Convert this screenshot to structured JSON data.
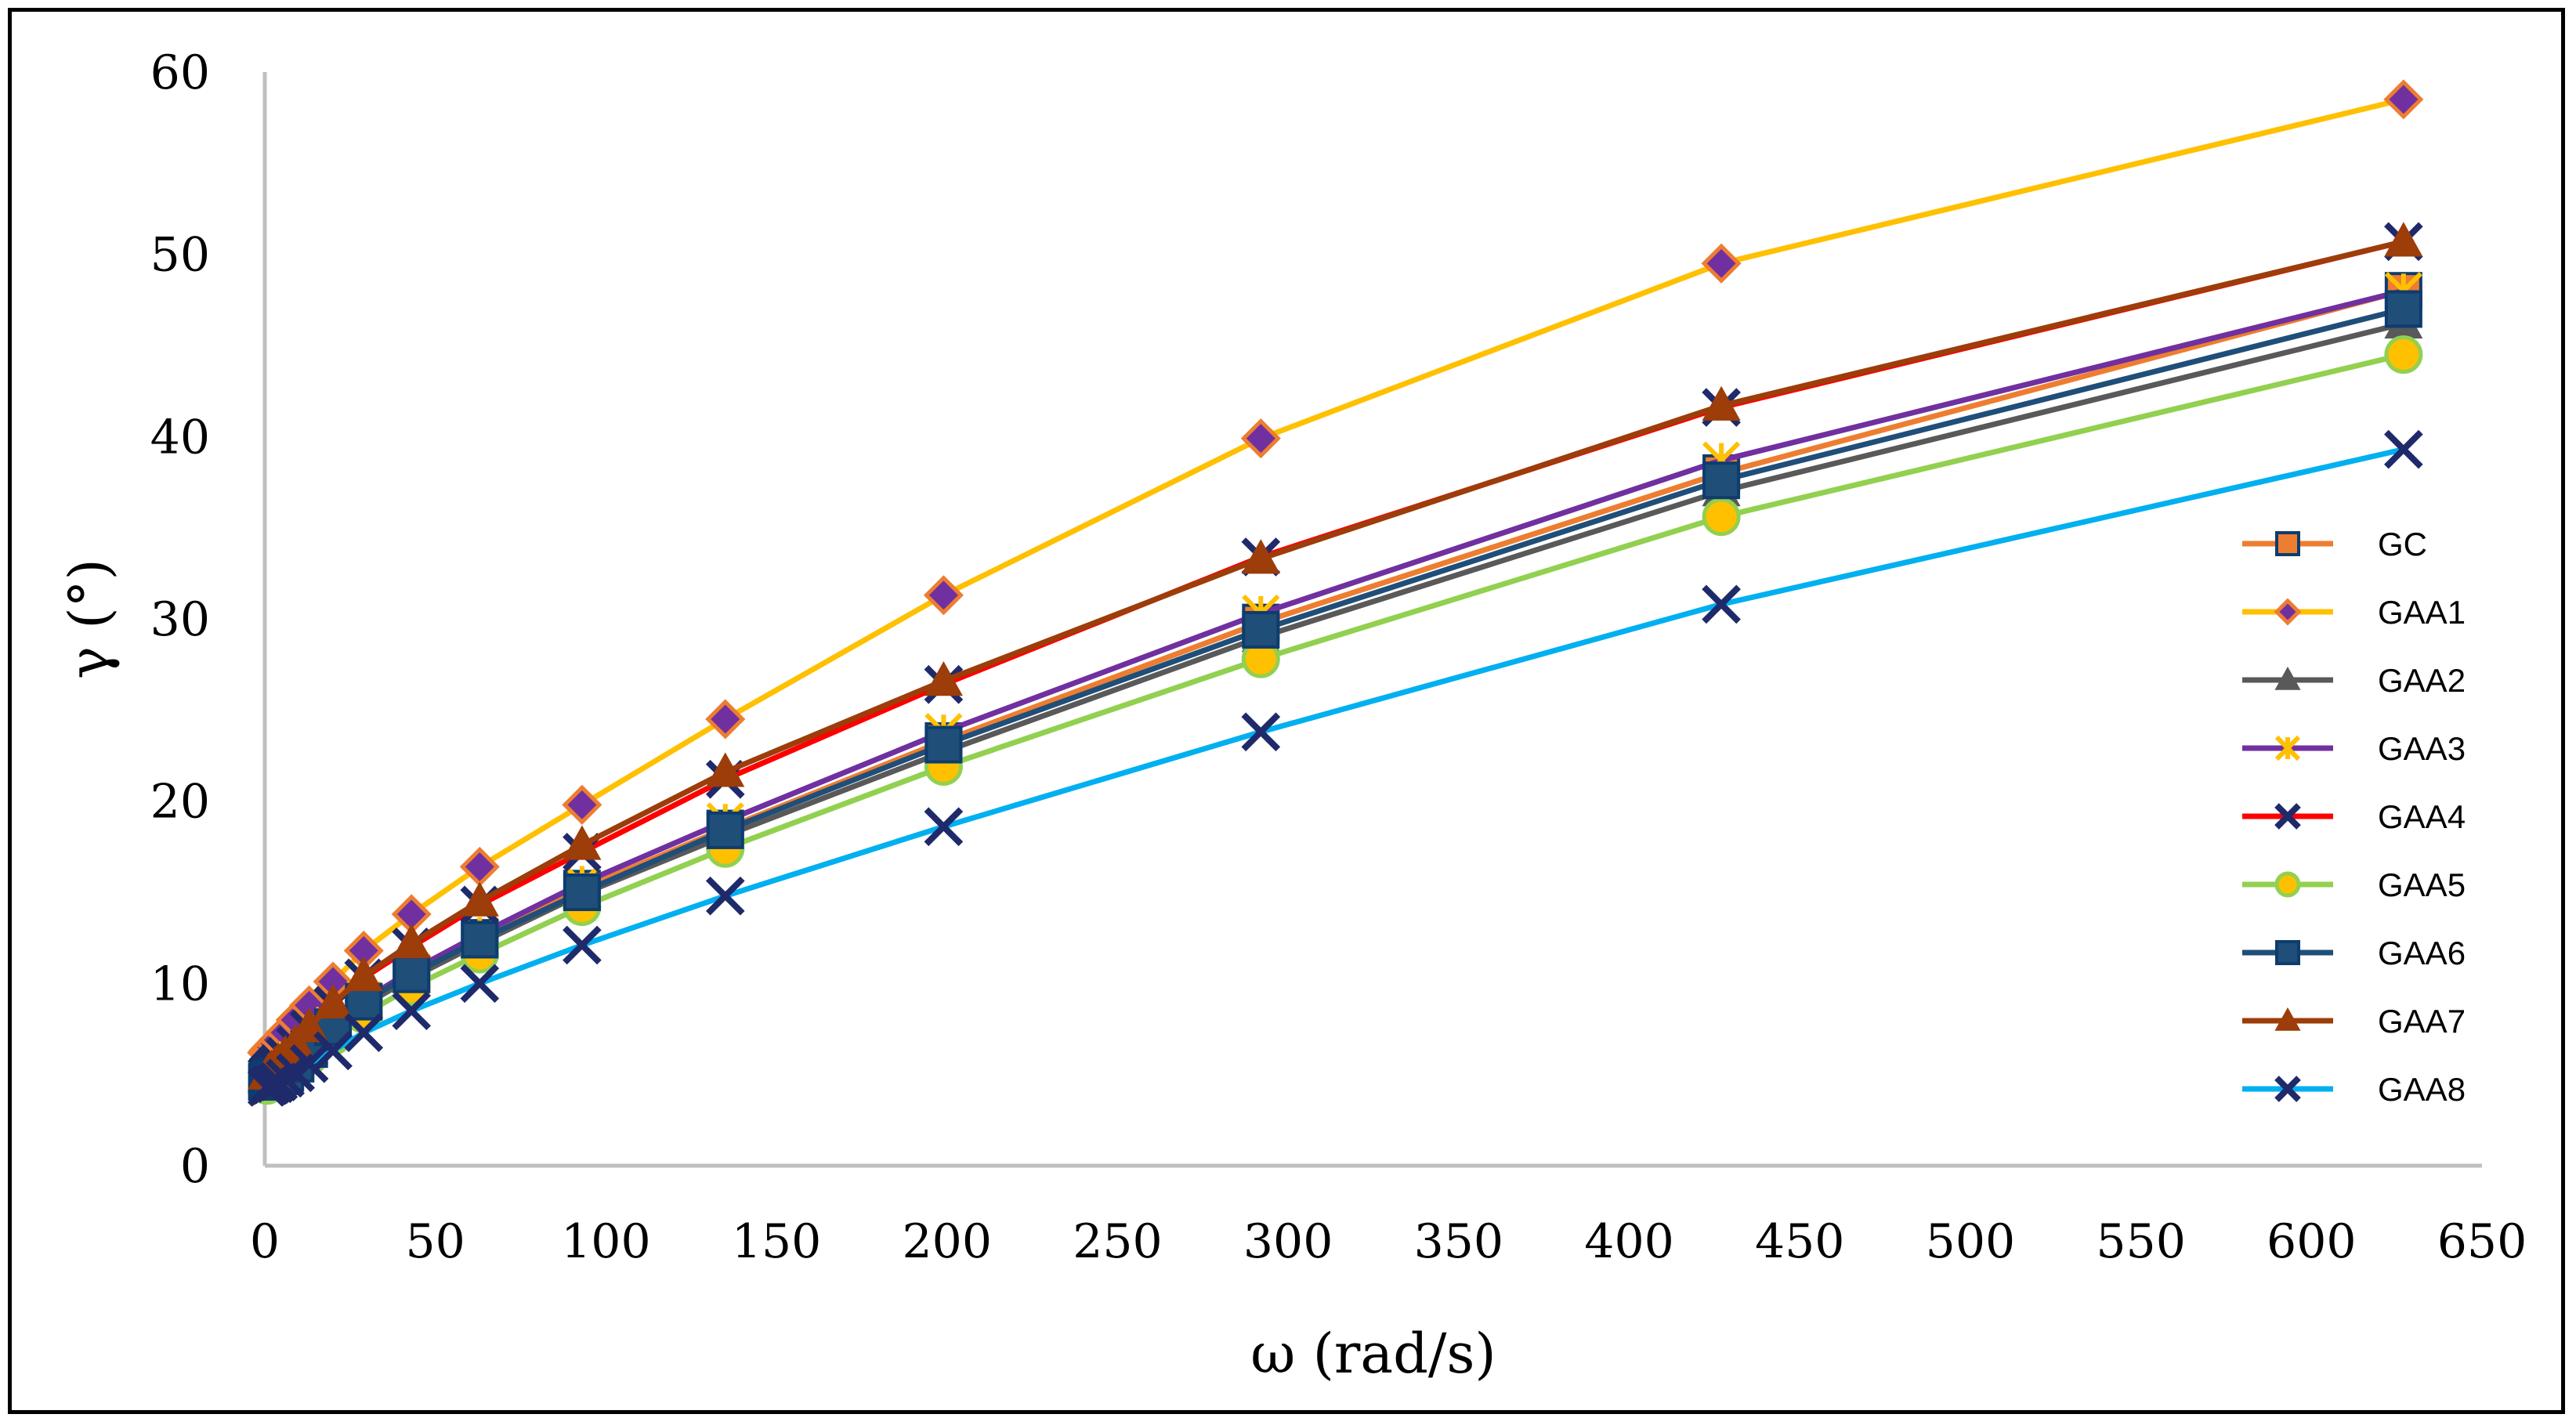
{
  "chart_data": {
    "type": "line",
    "title": "",
    "xlabel": "ω (rad/s)",
    "ylabel": "γ (°)",
    "xlim": [
      0,
      650
    ],
    "ylim": [
      0,
      60
    ],
    "x_ticks": [
      0,
      50,
      100,
      150,
      200,
      250,
      300,
      350,
      400,
      450,
      500,
      550,
      600,
      650
    ],
    "y_ticks": [
      0,
      10,
      20,
      30,
      40,
      50,
      60
    ],
    "grid": false,
    "legend_position": "right",
    "x": [
      0.63,
      1,
      1.5,
      2,
      3,
      4,
      6,
      9,
      13,
      20,
      29,
      43,
      63,
      93,
      135,
      199,
      292,
      427,
      627
    ],
    "series": [
      {
        "name": "GC",
        "color": "#ED7D31",
        "marker": "square",
        "values": [
          4.6,
          4.65,
          4.7,
          4.75,
          4.8,
          4.9,
          5.1,
          5.6,
          6.4,
          7.6,
          9.0,
          10.5,
          12.5,
          15.2,
          18.5,
          23.3,
          29.8,
          38.0,
          48.0
        ]
      },
      {
        "name": "GAA1",
        "color": "#FFC000",
        "marker": "diamond",
        "values": [
          6.2,
          6.3,
          6.4,
          6.5,
          6.7,
          6.9,
          7.3,
          8.0,
          8.8,
          10.1,
          11.8,
          13.8,
          16.4,
          19.8,
          24.5,
          31.3,
          39.9,
          49.5,
          58.5
        ]
      },
      {
        "name": "GAA2",
        "color": "#595959",
        "marker": "triangle",
        "values": [
          4.8,
          4.85,
          4.9,
          4.95,
          5.0,
          5.1,
          5.3,
          5.7,
          6.4,
          7.5,
          8.8,
          10.3,
          12.2,
          14.9,
          18.1,
          22.7,
          29.0,
          37.0,
          46.2
        ]
      },
      {
        "name": "GAA3",
        "color": "#7030A0",
        "marker": "cross",
        "values": [
          4.8,
          4.85,
          4.9,
          4.95,
          5.0,
          5.1,
          5.3,
          5.8,
          6.5,
          7.7,
          9.1,
          10.7,
          12.7,
          15.5,
          18.9,
          23.8,
          30.3,
          38.7,
          48.0
        ]
      },
      {
        "name": "GAA4",
        "color": "#FF0000",
        "marker": "x",
        "values": [
          4.9,
          5.0,
          5.1,
          5.2,
          5.4,
          5.6,
          6.0,
          6.6,
          7.5,
          8.8,
          10.3,
          12.0,
          14.3,
          17.2,
          21.2,
          26.4,
          33.4,
          41.6,
          50.7
        ]
      },
      {
        "name": "GAA5",
        "color": "#92D050",
        "marker": "circle",
        "values": [
          4.4,
          4.45,
          4.5,
          4.55,
          4.6,
          4.7,
          4.9,
          5.3,
          6.0,
          7.1,
          8.3,
          9.8,
          11.6,
          14.2,
          17.4,
          21.9,
          27.8,
          35.6,
          44.5
        ]
      },
      {
        "name": "GAA6",
        "color": "#1F4E79",
        "marker": "square",
        "values": [
          4.6,
          4.65,
          4.7,
          4.75,
          4.8,
          4.9,
          5.1,
          5.6,
          6.4,
          7.6,
          9.0,
          10.5,
          12.4,
          15.0,
          18.4,
          23.1,
          29.4,
          37.6,
          47.0
        ]
      },
      {
        "name": "GAA7",
        "color": "#9C3D0A",
        "marker": "triangle",
        "values": [
          5.0,
          5.1,
          5.2,
          5.3,
          5.5,
          5.7,
          6.1,
          6.7,
          7.6,
          8.9,
          10.4,
          12.2,
          14.5,
          17.6,
          21.6,
          26.6,
          33.3,
          41.7,
          50.7
        ]
      },
      {
        "name": "GAA8",
        "color": "#00B0F0",
        "marker": "x",
        "values": [
          4.3,
          4.35,
          4.4,
          4.45,
          4.5,
          4.6,
          4.8,
          5.1,
          5.6,
          6.3,
          7.3,
          8.5,
          10.0,
          12.1,
          14.8,
          18.6,
          23.8,
          30.8,
          39.3
        ]
      }
    ]
  }
}
